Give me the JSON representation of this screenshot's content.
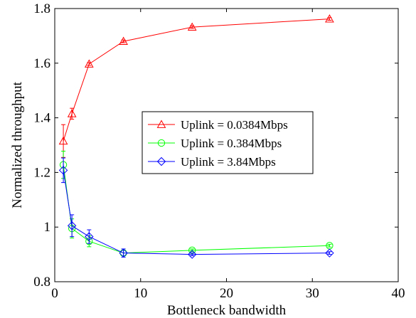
{
  "chart_data": {
    "type": "line",
    "xlabel": "Bottleneck bandwidth",
    "ylabel": "Normalized throughput",
    "xlim": [
      0,
      40
    ],
    "ylim": [
      0.8,
      1.8
    ],
    "xticks": [
      0,
      10,
      20,
      30,
      40
    ],
    "yticks": [
      0.8,
      1,
      1.2,
      1.4,
      1.6,
      1.8
    ],
    "xtick_labels": [
      "0",
      "10",
      "20",
      "30",
      "40"
    ],
    "ytick_labels": [
      "0.8",
      "1",
      "1.2",
      "1.4",
      "1.6",
      "1.8"
    ],
    "grid": false,
    "legend_position": "center-right",
    "series": [
      {
        "name": "Uplink = 0.0384Mbps",
        "color": "#ff0000",
        "marker": "triangle",
        "x": [
          1,
          2,
          4,
          8,
          16,
          32
        ],
        "y": [
          1.315,
          1.415,
          1.597,
          1.68,
          1.732,
          1.762
        ],
        "err": [
          0.06,
          0.02,
          0.005,
          0.005,
          0.005,
          0.005
        ]
      },
      {
        "name": "Uplink = 0.384Mbps",
        "color": "#00ff00",
        "marker": "circle",
        "x": [
          1,
          2,
          4,
          8,
          16,
          32
        ],
        "y": [
          1.228,
          0.995,
          0.948,
          0.905,
          0.915,
          0.932
        ],
        "err": [
          0.05,
          0.035,
          0.02,
          0.01,
          0.005,
          0.005
        ]
      },
      {
        "name": "Uplink = 3.84Mbps",
        "color": "#0000ff",
        "marker": "diamond",
        "x": [
          1,
          2,
          4,
          8,
          16,
          32
        ],
        "y": [
          1.208,
          1.005,
          0.965,
          0.905,
          0.9,
          0.905
        ],
        "err": [
          0.045,
          0.04,
          0.025,
          0.015,
          0.005,
          0.005
        ]
      }
    ]
  }
}
